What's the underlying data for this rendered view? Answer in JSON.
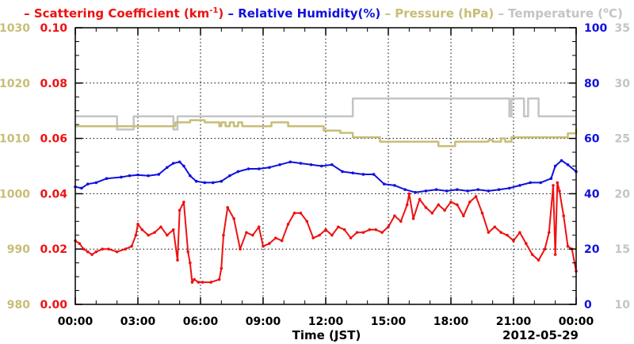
{
  "chart_data": {
    "type": "line",
    "date_label": "2012-05-29",
    "xlabel": "Time (JST)",
    "x_ticks": [
      "00:00",
      "03:00",
      "06:00",
      "09:00",
      "12:00",
      "15:00",
      "18:00",
      "21:00",
      "00:00"
    ],
    "x_range_hours": [
      0,
      24
    ],
    "grid": true,
    "legend": [
      {
        "prefix": "– ",
        "name": "Scattering Coefficient (km",
        "sup": "-1",
        "suffix": ")",
        "color": "#ee1111"
      },
      {
        "prefix": " – ",
        "name": "Relative Humidity(%)",
        "color": "#1111dd"
      },
      {
        "prefix": " – ",
        "name": "Pressure (hPa)",
        "color": "#c8bd76"
      },
      {
        "prefix": " – ",
        "name": "Temperature (",
        "sup": "o",
        "suffix": "C)",
        "color": "#c4c4c4"
      }
    ],
    "axes": {
      "pressure": {
        "side": "outer-left",
        "color": "#c8bd76",
        "range": [
          980,
          1030
        ],
        "ticks": [
          "980",
          "990",
          "1000",
          "1010",
          "1020",
          "1030"
        ]
      },
      "scattering": {
        "side": "left",
        "color": "#ee1111",
        "range": [
          0,
          0.1
        ],
        "ticks": [
          "0.00",
          "0.02",
          "0.04",
          "0.06",
          "0.08",
          "0.10"
        ]
      },
      "humidity": {
        "side": "right",
        "color": "#1111dd",
        "range": [
          0,
          100
        ],
        "ticks": [
          "0",
          "20",
          "40",
          "60",
          "80",
          "100"
        ]
      },
      "temperature": {
        "side": "outer-right",
        "color": "#c4c4c4",
        "range": [
          10,
          35
        ],
        "ticks": [
          "10",
          "15",
          "20",
          "25",
          "30",
          "35"
        ]
      }
    },
    "series": [
      {
        "axis": "temperature",
        "color": "#c4c4c4",
        "style": "step",
        "x": [
          0,
          2.0,
          2.8,
          4.7,
          4.9,
          13.3,
          20.8,
          20.9,
          21.5,
          21.7,
          22.2,
          22.4,
          24
        ],
        "y": [
          27.0,
          25.8,
          27.0,
          25.8,
          27.0,
          28.6,
          27.0,
          28.6,
          27.0,
          28.6,
          27.0,
          27.0,
          27.0
        ]
      },
      {
        "axis": "pressure",
        "color": "#c8bd76",
        "style": "step",
        "x": [
          0,
          4.8,
          5.5,
          6.2,
          6.9,
          7.0,
          7.2,
          7.4,
          7.6,
          7.8,
          8.0,
          9.4,
          10.2,
          11.9,
          12.7,
          13.3,
          14.6,
          16.0,
          17.4,
          18.2,
          18.6,
          19.8,
          20.0,
          20.4,
          20.6,
          20.9,
          23.6,
          24
        ],
        "y": [
          1012.2,
          1012.9,
          1013.3,
          1012.9,
          1012.2,
          1012.9,
          1012.2,
          1012.9,
          1012.2,
          1012.9,
          1012.2,
          1012.9,
          1012.2,
          1011.4,
          1011.0,
          1010.2,
          1009.4,
          1009.4,
          1008.6,
          1009.4,
          1009.4,
          1009.7,
          1009.4,
          1010.0,
          1009.4,
          1010.2,
          1010.9,
          1011.7
        ]
      },
      {
        "axis": "humidity",
        "color": "#1111dd",
        "style": "line",
        "x": [
          0,
          0.3,
          0.6,
          1.0,
          1.5,
          2.2,
          2.6,
          3.0,
          3.5,
          4.0,
          4.4,
          4.7,
          5.0,
          5.2,
          5.5,
          5.8,
          6.2,
          6.6,
          7.0,
          7.4,
          7.8,
          8.3,
          8.8,
          9.3,
          9.8,
          10.3,
          10.8,
          11.3,
          11.8,
          12.3,
          12.8,
          13.3,
          13.8,
          14.3,
          14.8,
          15.3,
          15.8,
          16.3,
          16.8,
          17.3,
          17.8,
          18.3,
          18.8,
          19.3,
          19.8,
          20.3,
          20.8,
          21.3,
          21.8,
          22.3,
          22.8,
          23.0,
          23.3,
          23.6,
          24
        ],
        "y": [
          42.5,
          42.0,
          43.5,
          44.0,
          45.5,
          46.0,
          46.5,
          46.8,
          46.5,
          47.0,
          49.5,
          51.0,
          51.5,
          50.0,
          46.5,
          44.5,
          44.0,
          44.0,
          44.5,
          46.5,
          48.0,
          49.0,
          49.0,
          49.5,
          50.5,
          51.5,
          51.0,
          50.5,
          50.0,
          50.5,
          48.0,
          47.5,
          47.0,
          47.0,
          43.5,
          43.0,
          41.5,
          40.5,
          41.0,
          41.5,
          41.0,
          41.5,
          41.0,
          41.5,
          41.0,
          41.5,
          42.0,
          43.0,
          44.0,
          44.0,
          45.5,
          50.0,
          52.0,
          50.5,
          48.0
        ]
      },
      {
        "axis": "scattering",
        "color": "#ee1111",
        "style": "line",
        "x": [
          0,
          0.2,
          0.4,
          0.6,
          0.8,
          1.0,
          1.3,
          1.6,
          2.0,
          2.4,
          2.7,
          2.9,
          3.0,
          3.2,
          3.5,
          3.8,
          4.1,
          4.4,
          4.7,
          4.9,
          5.0,
          5.2,
          5.4,
          5.5,
          5.6,
          5.7,
          5.9,
          6.1,
          6.5,
          6.9,
          7.0,
          7.1,
          7.3,
          7.6,
          7.9,
          8.2,
          8.5,
          8.8,
          9.0,
          9.3,
          9.6,
          9.9,
          10.2,
          10.5,
          10.8,
          11.1,
          11.4,
          11.7,
          12.0,
          12.3,
          12.6,
          12.9,
          13.2,
          13.5,
          13.8,
          14.1,
          14.4,
          14.7,
          15.0,
          15.3,
          15.6,
          15.9,
          16.0,
          16.2,
          16.5,
          16.8,
          17.1,
          17.4,
          17.7,
          18.0,
          18.3,
          18.6,
          18.9,
          19.2,
          19.5,
          19.8,
          20.1,
          20.4,
          20.7,
          21.0,
          21.3,
          21.6,
          21.9,
          22.2,
          22.5,
          22.7,
          22.9,
          23.0,
          23.1,
          23.2,
          23.4,
          23.6,
          23.8,
          24
        ],
        "y": [
          0.023,
          0.022,
          0.02,
          0.019,
          0.018,
          0.019,
          0.02,
          0.02,
          0.019,
          0.02,
          0.021,
          0.025,
          0.029,
          0.027,
          0.025,
          0.026,
          0.028,
          0.025,
          0.027,
          0.016,
          0.034,
          0.037,
          0.019,
          0.015,
          0.008,
          0.009,
          0.008,
          0.008,
          0.008,
          0.009,
          0.013,
          0.025,
          0.035,
          0.031,
          0.02,
          0.026,
          0.025,
          0.028,
          0.021,
          0.022,
          0.024,
          0.023,
          0.029,
          0.033,
          0.033,
          0.03,
          0.024,
          0.025,
          0.027,
          0.025,
          0.028,
          0.027,
          0.024,
          0.026,
          0.026,
          0.027,
          0.027,
          0.026,
          0.028,
          0.032,
          0.03,
          0.036,
          0.04,
          0.031,
          0.038,
          0.035,
          0.033,
          0.036,
          0.034,
          0.037,
          0.036,
          0.032,
          0.037,
          0.039,
          0.033,
          0.026,
          0.028,
          0.026,
          0.025,
          0.023,
          0.026,
          0.022,
          0.018,
          0.016,
          0.02,
          0.026,
          0.043,
          0.018,
          0.044,
          0.041,
          0.032,
          0.021,
          0.02,
          0.012
        ]
      }
    ]
  }
}
